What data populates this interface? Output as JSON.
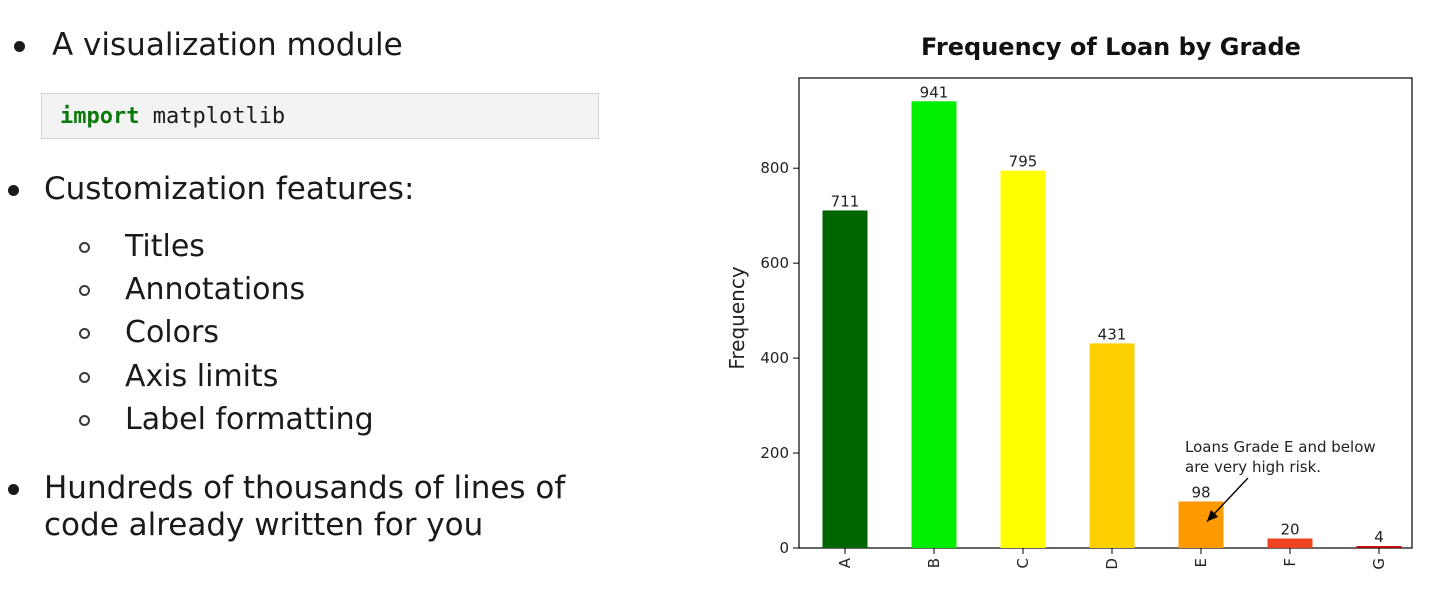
{
  "left": {
    "bullets": [
      {
        "text": "A visualization module"
      },
      {
        "text": "Customization features:"
      },
      {
        "text": "Hundreds of thousands of lines of\ncode already written for you"
      }
    ],
    "code": {
      "keyword": "import",
      "rest": " matplotlib"
    },
    "sub_items": [
      {
        "text": "Titles"
      },
      {
        "text": "Annotations"
      },
      {
        "text": "Colors"
      },
      {
        "text": "Axis limits"
      },
      {
        "text": "Label formatting"
      }
    ]
  },
  "chart_data": {
    "type": "bar",
    "title": "Frequency of Loan by Grade",
    "xlabel": "",
    "ylabel": "Frequency",
    "categories": [
      "A",
      "B",
      "C",
      "D",
      "E",
      "F",
      "G"
    ],
    "values": [
      711,
      941,
      795,
      431,
      98,
      20,
      4
    ],
    "bar_labels": [
      "711",
      "941",
      "795",
      "431",
      "98",
      "20",
      "4"
    ],
    "colors": [
      "#006400",
      "#00ee00",
      "#ffff00",
      "#ffd000",
      "#ff9900",
      "#ee4422",
      "#bb0000"
    ],
    "ylim": [
      0,
      990
    ],
    "yticks": [
      0,
      200,
      400,
      600,
      800
    ],
    "ytick_labels": [
      "0",
      "200",
      "400",
      "600",
      "800"
    ],
    "grid": false,
    "annotation": {
      "text_line1": "Loans Grade E and below",
      "text_line2": "are very high risk.",
      "target_category": "E",
      "target_value": 98
    }
  }
}
